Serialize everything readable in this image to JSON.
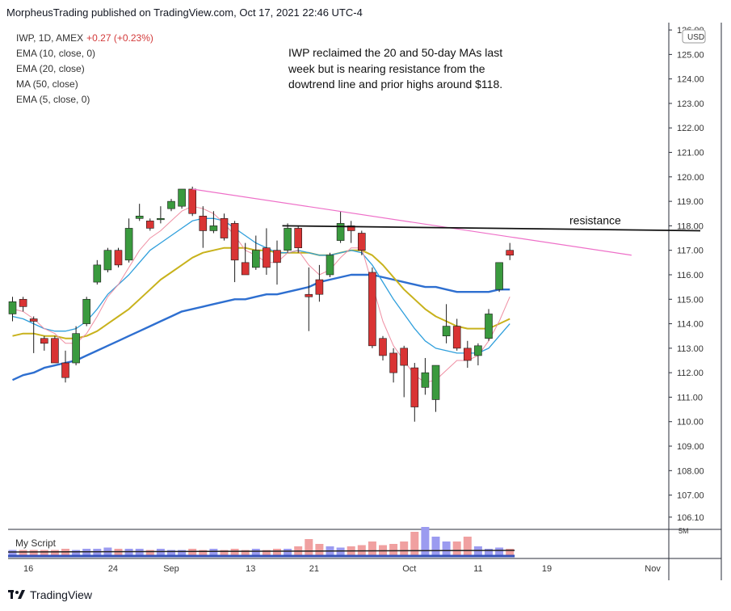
{
  "header": {
    "publisher_line": "MorpheusTrading published on TradingView.com, Oct 17, 2021 22:46 UTC-4"
  },
  "legend": {
    "symbol": "IWP, 1D, AMEX",
    "change": "+0.27 (+0.23%)",
    "indicators": [
      "EMA (10, close, 0)",
      "EMA (20, close)",
      "MA (50, close)",
      "EMA (5, close, 0)"
    ]
  },
  "annotation": "IWP reclaimed the 20 and 50-day MAs last week but is nearing resistance from the dowtrend line and prior highs around $118.",
  "resistance_label": "resistance",
  "currency": "USD",
  "volume_pane": {
    "label": "My Script",
    "scale_label": "5M"
  },
  "footer": {
    "brand": "TradingView"
  },
  "colors": {
    "up": "#3a9a3e",
    "down": "#d93434",
    "ema10": "#2f9fdc",
    "ema20": "#c8b21c",
    "ma50": "#2e6fd0",
    "ema5": "#ef8fa3",
    "trendline": "#ee6fc8",
    "resistance": "#111111",
    "vol_up": "#9b9bf0",
    "vol_down": "#f0a0a0",
    "vol_base": "#3550b8"
  },
  "chart_data": {
    "type": "candlestick",
    "ylim": [
      105.6,
      126.3
    ],
    "y_ticks": [
      {
        "value": 126.0,
        "label": "126.00"
      },
      {
        "value": 125.0,
        "label": "125.00"
      },
      {
        "value": 124.0,
        "label": "124.00"
      },
      {
        "value": 123.0,
        "label": "123.00"
      },
      {
        "value": 122.0,
        "label": "122.00"
      },
      {
        "value": 121.0,
        "label": "121.00"
      },
      {
        "value": 120.0,
        "label": "120.00"
      },
      {
        "value": 119.0,
        "label": "119.00"
      },
      {
        "value": 118.0,
        "label": "118.00"
      },
      {
        "value": 117.0,
        "label": "117.00"
      },
      {
        "value": 116.0,
        "label": "116.00"
      },
      {
        "value": 115.0,
        "label": "115.00"
      },
      {
        "value": 114.0,
        "label": "114.00"
      },
      {
        "value": 113.0,
        "label": "113.00"
      },
      {
        "value": 112.0,
        "label": "112.00"
      },
      {
        "value": 111.0,
        "label": "111.00"
      },
      {
        "value": 110.0,
        "label": "110.00"
      },
      {
        "value": 109.0,
        "label": "109.00"
      },
      {
        "value": 108.0,
        "label": "108.00"
      },
      {
        "value": 107.0,
        "label": "107.00"
      },
      {
        "value": 106.1,
        "label": "106.10"
      }
    ],
    "x_ticks": [
      {
        "index": 1.5,
        "label": "16"
      },
      {
        "index": 9.5,
        "label": "24"
      },
      {
        "index": 15,
        "label": "Sep"
      },
      {
        "index": 22.5,
        "label": "13"
      },
      {
        "index": 28.5,
        "label": "21"
      },
      {
        "index": 37.5,
        "label": "Oct"
      },
      {
        "index": 44,
        "label": "11"
      },
      {
        "index": 50.5,
        "label": "19"
      },
      {
        "index": 60.5,
        "label": "Nov"
      }
    ],
    "candles": [
      {
        "o": 114.4,
        "h": 115.1,
        "l": 114.1,
        "c": 114.9
      },
      {
        "o": 115.0,
        "h": 115.1,
        "l": 114.5,
        "c": 114.7
      },
      {
        "o": 114.2,
        "h": 114.3,
        "l": 112.8,
        "c": 114.1
      },
      {
        "o": 113.4,
        "h": 113.5,
        "l": 112.9,
        "c": 113.2
      },
      {
        "o": 113.4,
        "h": 113.5,
        "l": 112.4,
        "c": 112.4
      },
      {
        "o": 112.4,
        "h": 112.9,
        "l": 111.6,
        "c": 111.8
      },
      {
        "o": 112.4,
        "h": 113.9,
        "l": 112.3,
        "c": 113.6
      },
      {
        "o": 114.0,
        "h": 115.1,
        "l": 113.9,
        "c": 115.0
      },
      {
        "o": 115.7,
        "h": 116.6,
        "l": 115.6,
        "c": 116.4
      },
      {
        "o": 116.2,
        "h": 117.1,
        "l": 116.1,
        "c": 117.0
      },
      {
        "o": 117.0,
        "h": 117.1,
        "l": 116.3,
        "c": 116.4
      },
      {
        "o": 116.6,
        "h": 118.3,
        "l": 116.5,
        "c": 117.9
      },
      {
        "o": 118.3,
        "h": 118.9,
        "l": 118.2,
        "c": 118.4
      },
      {
        "o": 118.2,
        "h": 118.3,
        "l": 117.8,
        "c": 117.9
      },
      {
        "o": 118.3,
        "h": 118.8,
        "l": 118.1,
        "c": 118.3
      },
      {
        "o": 118.7,
        "h": 119.1,
        "l": 118.6,
        "c": 119.0
      },
      {
        "o": 118.8,
        "h": 119.5,
        "l": 118.7,
        "c": 119.5
      },
      {
        "o": 119.5,
        "h": 119.6,
        "l": 118.4,
        "c": 118.5
      },
      {
        "o": 118.4,
        "h": 118.8,
        "l": 117.1,
        "c": 117.8
      },
      {
        "o": 117.8,
        "h": 118.6,
        "l": 117.7,
        "c": 118.0
      },
      {
        "o": 118.3,
        "h": 118.5,
        "l": 117.4,
        "c": 117.5
      },
      {
        "o": 118.1,
        "h": 118.2,
        "l": 115.7,
        "c": 116.6
      },
      {
        "o": 116.5,
        "h": 117.3,
        "l": 116.0,
        "c": 116.0
      },
      {
        "o": 116.3,
        "h": 117.6,
        "l": 116.2,
        "c": 117.0
      },
      {
        "o": 117.1,
        "h": 117.9,
        "l": 116.0,
        "c": 116.3
      },
      {
        "o": 117.0,
        "h": 117.4,
        "l": 115.6,
        "c": 116.5
      },
      {
        "o": 117.0,
        "h": 118.1,
        "l": 116.9,
        "c": 117.9
      },
      {
        "o": 117.9,
        "h": 118.0,
        "l": 116.9,
        "c": 117.1
      },
      {
        "o": 115.2,
        "h": 116.3,
        "l": 113.7,
        "c": 115.1
      },
      {
        "o": 115.8,
        "h": 116.4,
        "l": 114.9,
        "c": 115.2
      },
      {
        "o": 116.0,
        "h": 116.9,
        "l": 115.9,
        "c": 116.8
      },
      {
        "o": 117.4,
        "h": 118.6,
        "l": 117.3,
        "c": 118.1
      },
      {
        "o": 118.0,
        "h": 118.2,
        "l": 117.3,
        "c": 117.8
      },
      {
        "o": 117.7,
        "h": 117.8,
        "l": 116.8,
        "c": 117.0
      },
      {
        "o": 116.1,
        "h": 116.3,
        "l": 113.0,
        "c": 113.1
      },
      {
        "o": 113.4,
        "h": 113.5,
        "l": 112.5,
        "c": 112.7
      },
      {
        "o": 112.8,
        "h": 113.0,
        "l": 111.6,
        "c": 112.0
      },
      {
        "o": 113.0,
        "h": 113.1,
        "l": 111.0,
        "c": 112.3
      },
      {
        "o": 112.2,
        "h": 112.4,
        "l": 110.0,
        "c": 110.6
      },
      {
        "o": 111.4,
        "h": 112.6,
        "l": 111.1,
        "c": 112.0
      },
      {
        "o": 110.9,
        "h": 112.3,
        "l": 110.4,
        "c": 112.3
      },
      {
        "o": 113.5,
        "h": 114.8,
        "l": 113.2,
        "c": 113.9
      },
      {
        "o": 113.9,
        "h": 114.2,
        "l": 112.9,
        "c": 113.0
      },
      {
        "o": 113.0,
        "h": 113.3,
        "l": 112.2,
        "c": 112.5
      },
      {
        "o": 112.7,
        "h": 113.2,
        "l": 112.3,
        "c": 113.1
      },
      {
        "o": 113.4,
        "h": 114.6,
        "l": 113.3,
        "c": 114.4
      },
      {
        "o": 115.4,
        "h": 116.5,
        "l": 115.3,
        "c": 116.5
      },
      {
        "o": 117.0,
        "h": 117.3,
        "l": 116.6,
        "c": 116.8
      }
    ],
    "ema10": [
      114.3,
      114.2,
      114.0,
      113.8,
      113.7,
      113.7,
      113.8,
      114.1,
      114.6,
      115.2,
      115.6,
      116.0,
      116.5,
      117.0,
      117.3,
      117.6,
      117.9,
      118.2,
      118.3,
      118.3,
      118.2,
      117.9,
      117.6,
      117.3,
      117.1,
      116.9,
      116.9,
      117.0,
      116.9,
      116.8,
      116.8,
      116.9,
      117.0,
      116.9,
      116.4,
      115.7,
      115.0,
      114.4,
      113.8,
      113.3,
      113.0,
      112.9,
      112.8,
      112.8,
      112.8,
      113.0,
      113.5,
      114.0
    ],
    "ema20": [
      113.5,
      113.6,
      113.6,
      113.5,
      113.5,
      113.4,
      113.4,
      113.5,
      113.7,
      114.0,
      114.3,
      114.6,
      115.0,
      115.4,
      115.8,
      116.1,
      116.4,
      116.7,
      116.9,
      117.0,
      117.1,
      117.1,
      117.1,
      117.0,
      117.0,
      116.9,
      116.9,
      116.9,
      116.9,
      116.8,
      116.8,
      116.9,
      117.0,
      117.0,
      116.8,
      116.4,
      115.9,
      115.4,
      115.0,
      114.6,
      114.3,
      114.1,
      113.9,
      113.8,
      113.8,
      113.8,
      114.0,
      114.2
    ],
    "ma50": [
      111.7,
      111.9,
      112.0,
      112.2,
      112.3,
      112.4,
      112.5,
      112.7,
      112.9,
      113.1,
      113.3,
      113.5,
      113.7,
      113.9,
      114.1,
      114.3,
      114.5,
      114.6,
      114.7,
      114.8,
      114.9,
      115.0,
      115.0,
      115.1,
      115.2,
      115.2,
      115.3,
      115.4,
      115.5,
      115.7,
      115.8,
      115.9,
      116.0,
      116.0,
      116.0,
      115.9,
      115.8,
      115.7,
      115.6,
      115.5,
      115.5,
      115.4,
      115.3,
      115.3,
      115.3,
      115.3,
      115.4,
      115.4
    ],
    "ema5": [
      114.6,
      114.5,
      114.2,
      113.8,
      113.6,
      113.2,
      113.2,
      113.6,
      114.3,
      115.1,
      115.6,
      116.3,
      117.0,
      117.5,
      117.8,
      118.2,
      118.6,
      118.8,
      118.7,
      118.5,
      118.1,
      117.6,
      117.0,
      116.8,
      116.5,
      116.5,
      116.9,
      117.0,
      116.4,
      116.0,
      116.2,
      116.7,
      117.1,
      117.1,
      115.6,
      114.1,
      113.1,
      112.5,
      111.9,
      111.6,
      111.7,
      112.1,
      112.5,
      112.5,
      112.7,
      113.3,
      114.1,
      115.1
    ],
    "trendline": {
      "start": {
        "index": 17,
        "value": 119.5
      },
      "end": {
        "index": 58.5,
        "value": 116.8
      }
    },
    "resistance": {
      "start": {
        "index": 25.5,
        "value": 118.0
      },
      "end": {
        "index": 65,
        "value": 117.8
      }
    },
    "volume": [
      0.25,
      0.25,
      0.25,
      0.25,
      0.25,
      0.3,
      0.25,
      0.3,
      0.3,
      0.35,
      0.3,
      0.3,
      0.3,
      0.25,
      0.3,
      0.25,
      0.25,
      0.3,
      0.25,
      0.3,
      0.25,
      0.3,
      0.25,
      0.3,
      0.25,
      0.3,
      0.3,
      0.4,
      0.7,
      0.5,
      0.4,
      0.35,
      0.4,
      0.45,
      0.6,
      0.45,
      0.5,
      0.6,
      1.0,
      1.2,
      0.8,
      0.6,
      0.6,
      0.8,
      0.4,
      0.3,
      0.35,
      0.3
    ]
  }
}
